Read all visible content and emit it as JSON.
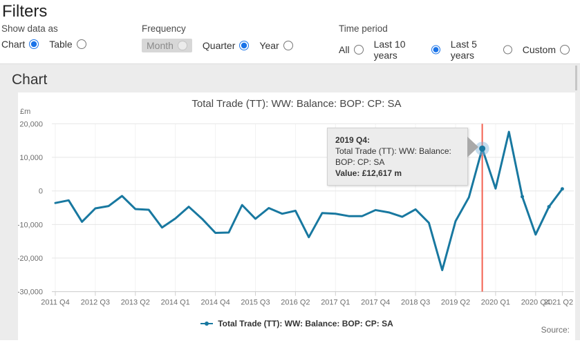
{
  "filters": {
    "title": "Filters",
    "show_data_as": {
      "label": "Show data as",
      "options": [
        {
          "label": "Chart",
          "selected": true,
          "disabled": false
        },
        {
          "label": "Table",
          "selected": false,
          "disabled": false
        }
      ]
    },
    "frequency": {
      "label": "Frequency",
      "options": [
        {
          "label": "Month",
          "selected": false,
          "disabled": true
        },
        {
          "label": "Quarter",
          "selected": true,
          "disabled": false
        },
        {
          "label": "Year",
          "selected": false,
          "disabled": false
        }
      ]
    },
    "time_period": {
      "label": "Time period",
      "options": [
        {
          "label": "All",
          "selected": false,
          "disabled": false
        },
        {
          "label": "Last 10 years",
          "selected": true,
          "disabled": false
        },
        {
          "label": "Last 5 years",
          "selected": false,
          "disabled": false
        },
        {
          "label": "Custom",
          "selected": false,
          "disabled": false
        }
      ]
    }
  },
  "chart_section": {
    "heading": "Chart",
    "source_label": "Source:"
  },
  "tooltip": {
    "period": "2019 Q4:",
    "series": "Total Trade (TT): WW: Balance: BOP: CP: SA",
    "value_label": "Value:",
    "value": "£12,617 m"
  },
  "chart_data": {
    "type": "line",
    "title": "Total Trade (TT): WW: Balance: BOP: CP: SA",
    "unit_label": "£m",
    "categories": [
      "2011 Q4",
      "2012 Q1",
      "2012 Q2",
      "2012 Q3",
      "2012 Q4",
      "2013 Q1",
      "2013 Q2",
      "2013 Q3",
      "2013 Q4",
      "2014 Q1",
      "2014 Q2",
      "2014 Q3",
      "2014 Q4",
      "2015 Q1",
      "2015 Q2",
      "2015 Q3",
      "2015 Q4",
      "2016 Q1",
      "2016 Q2",
      "2016 Q3",
      "2016 Q4",
      "2017 Q1",
      "2017 Q2",
      "2017 Q3",
      "2017 Q4",
      "2018 Q1",
      "2018 Q2",
      "2018 Q3",
      "2018 Q4",
      "2019 Q1",
      "2019 Q2",
      "2019 Q3",
      "2019 Q4",
      "2020 Q1",
      "2020 Q2",
      "2020 Q3",
      "2020 Q4",
      "2021 Q1",
      "2021 Q2"
    ],
    "series": [
      {
        "name": "Total Trade (TT): WW: Balance: BOP: CP: SA",
        "color": "#1878a0",
        "values": [
          -3600,
          -2800,
          -9200,
          -5200,
          -4500,
          -1500,
          -5400,
          -5600,
          -10900,
          -8200,
          -4700,
          -8300,
          -12500,
          -12400,
          -4200,
          -8300,
          -5100,
          -6800,
          -5900,
          -13800,
          -6600,
          -6800,
          -7500,
          -7500,
          -5700,
          -6400,
          -7700,
          -5500,
          -9500,
          -23600,
          -9000,
          -1900,
          12617,
          700,
          17600,
          -1700,
          -13000,
          -4700,
          600
        ]
      }
    ],
    "ylim": [
      -30000,
      20000
    ],
    "y_ticks": [
      20000,
      10000,
      0,
      -10000,
      -20000,
      -30000
    ],
    "x_ticks": [
      {
        "index": 0,
        "label": "2011 Q4"
      },
      {
        "index": 3,
        "label": "2012 Q3"
      },
      {
        "index": 6,
        "label": "2013 Q2"
      },
      {
        "index": 9,
        "label": "2014 Q1"
      },
      {
        "index": 12,
        "label": "2014 Q4"
      },
      {
        "index": 15,
        "label": "2015 Q3"
      },
      {
        "index": 18,
        "label": "2016 Q2"
      },
      {
        "index": 21,
        "label": "2017 Q1"
      },
      {
        "index": 24,
        "label": "2017 Q4"
      },
      {
        "index": 27,
        "label": "2018 Q3"
      },
      {
        "index": 30,
        "label": "2019 Q2"
      },
      {
        "index": 33,
        "label": "2020 Q1"
      },
      {
        "index": 36,
        "label": "2020 Q4"
      },
      {
        "index": 38,
        "label": "2021 Q2"
      }
    ],
    "grid": true,
    "legend_position": "bottom",
    "highlight": {
      "category": "2019 Q4",
      "index": 32,
      "value": 12617,
      "value_text": "£12,617 m"
    },
    "marker_indices": [
      35,
      37,
      38
    ],
    "colors": {
      "series": "#1878a0",
      "hover_line": "#f4604f",
      "halo": "#7fb3d9",
      "gridline": "#e6e6e6",
      "minor_gridline": "#f2f2f2",
      "axis_line": "#cfcfcf"
    }
  }
}
